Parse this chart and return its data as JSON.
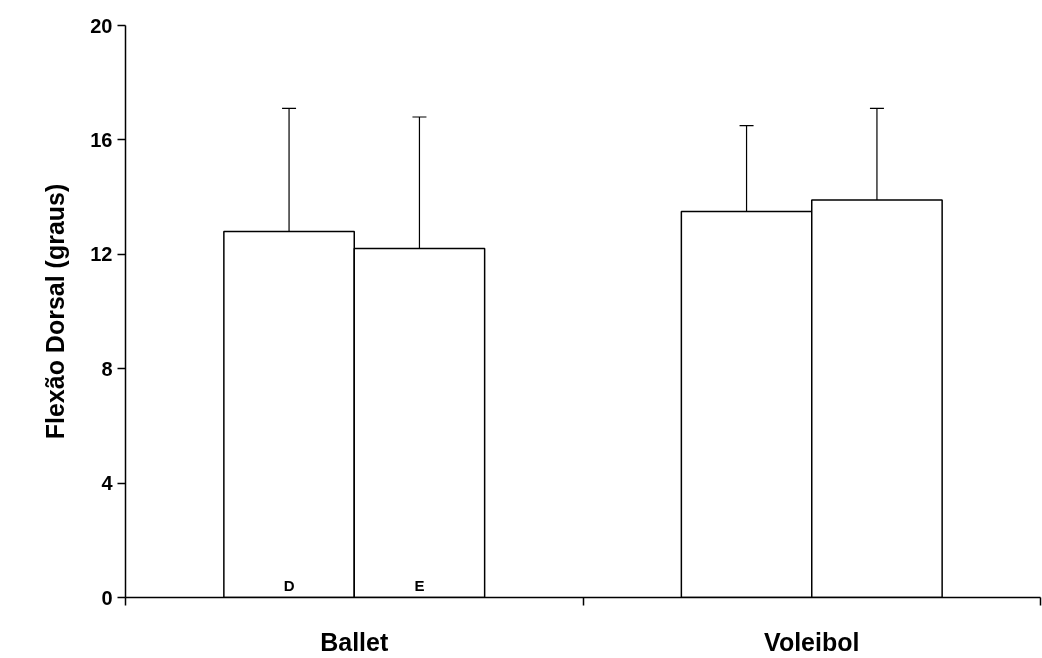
{
  "chart_data": {
    "type": "bar",
    "ylabel": "Flexão Dorsal (graus)",
    "categories": [
      "Ballet",
      "Voleibol"
    ],
    "series": [
      {
        "name": "D",
        "color": "#ffffff",
        "values": [
          12.8,
          13.5
        ],
        "errors": [
          [
            12.8,
            17.1
          ],
          [
            13.5,
            16.5
          ]
        ]
      },
      {
        "name": "E",
        "color": "#ffffff",
        "values": [
          12.2,
          13.9
        ],
        "errors": [
          [
            12.2,
            16.8
          ],
          [
            13.9,
            17.1
          ]
        ]
      }
    ],
    "ylim": [
      0,
      20
    ],
    "yticks": [
      0,
      4,
      8,
      12,
      16,
      20
    ],
    "grid": false
  }
}
